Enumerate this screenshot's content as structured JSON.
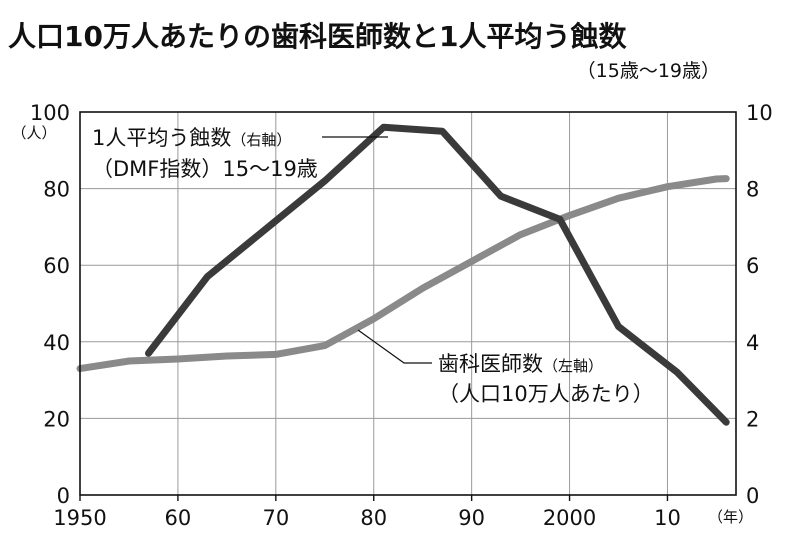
{
  "title": "人口10万人あたりの歯科医師数と1人平均う蝕数",
  "subtitle": "（15歳〜19歳）",
  "chart_data": {
    "type": "line",
    "left_axis": {
      "ylim": [
        0,
        100
      ],
      "ticks": [
        "0",
        "20",
        "40",
        "60",
        "80",
        "100"
      ],
      "unit_label": "（人）"
    },
    "right_axis": {
      "ylim": [
        0,
        10
      ],
      "ticks": [
        "0",
        "2",
        "4",
        "6",
        "8",
        "10"
      ]
    },
    "x_axis": {
      "xlim": [
        1950,
        2017
      ],
      "tick_values": [
        1950,
        1960,
        1970,
        1980,
        1990,
        2000,
        2010
      ],
      "tick_labels": [
        "1950",
        "60",
        "70",
        "80",
        "90",
        "2000",
        "10"
      ],
      "unit_label": "（年）"
    },
    "grid": true,
    "series": [
      {
        "id": "caries",
        "axis": "right",
        "color": "#3a3a3a",
        "label_main": "1人平均う蝕数",
        "label_axis": "（右軸）",
        "label_sub": "（DMF指数）15〜19歳",
        "x": [
          1957,
          1963,
          1975,
          1981,
          1987,
          1993,
          1999,
          2005,
          2011,
          2016
        ],
        "y": [
          3.7,
          5.7,
          8.2,
          9.6,
          9.5,
          7.8,
          7.2,
          4.4,
          3.2,
          1.9
        ]
      },
      {
        "id": "dentists",
        "axis": "left",
        "color": "#8a8a8a",
        "label_main": "歯科医師数",
        "label_axis": "（左軸）",
        "label_sub": "（人口10万人あたり）",
        "x": [
          1950,
          1955,
          1960,
          1965,
          1970,
          1975,
          1980,
          1985,
          1990,
          1995,
          2000,
          2005,
          2010,
          2015,
          2016
        ],
        "y": [
          33,
          35,
          35.5,
          36.3,
          36.7,
          39,
          46,
          54,
          61,
          68,
          73,
          77.5,
          80.5,
          82.5,
          82.6
        ]
      }
    ]
  }
}
